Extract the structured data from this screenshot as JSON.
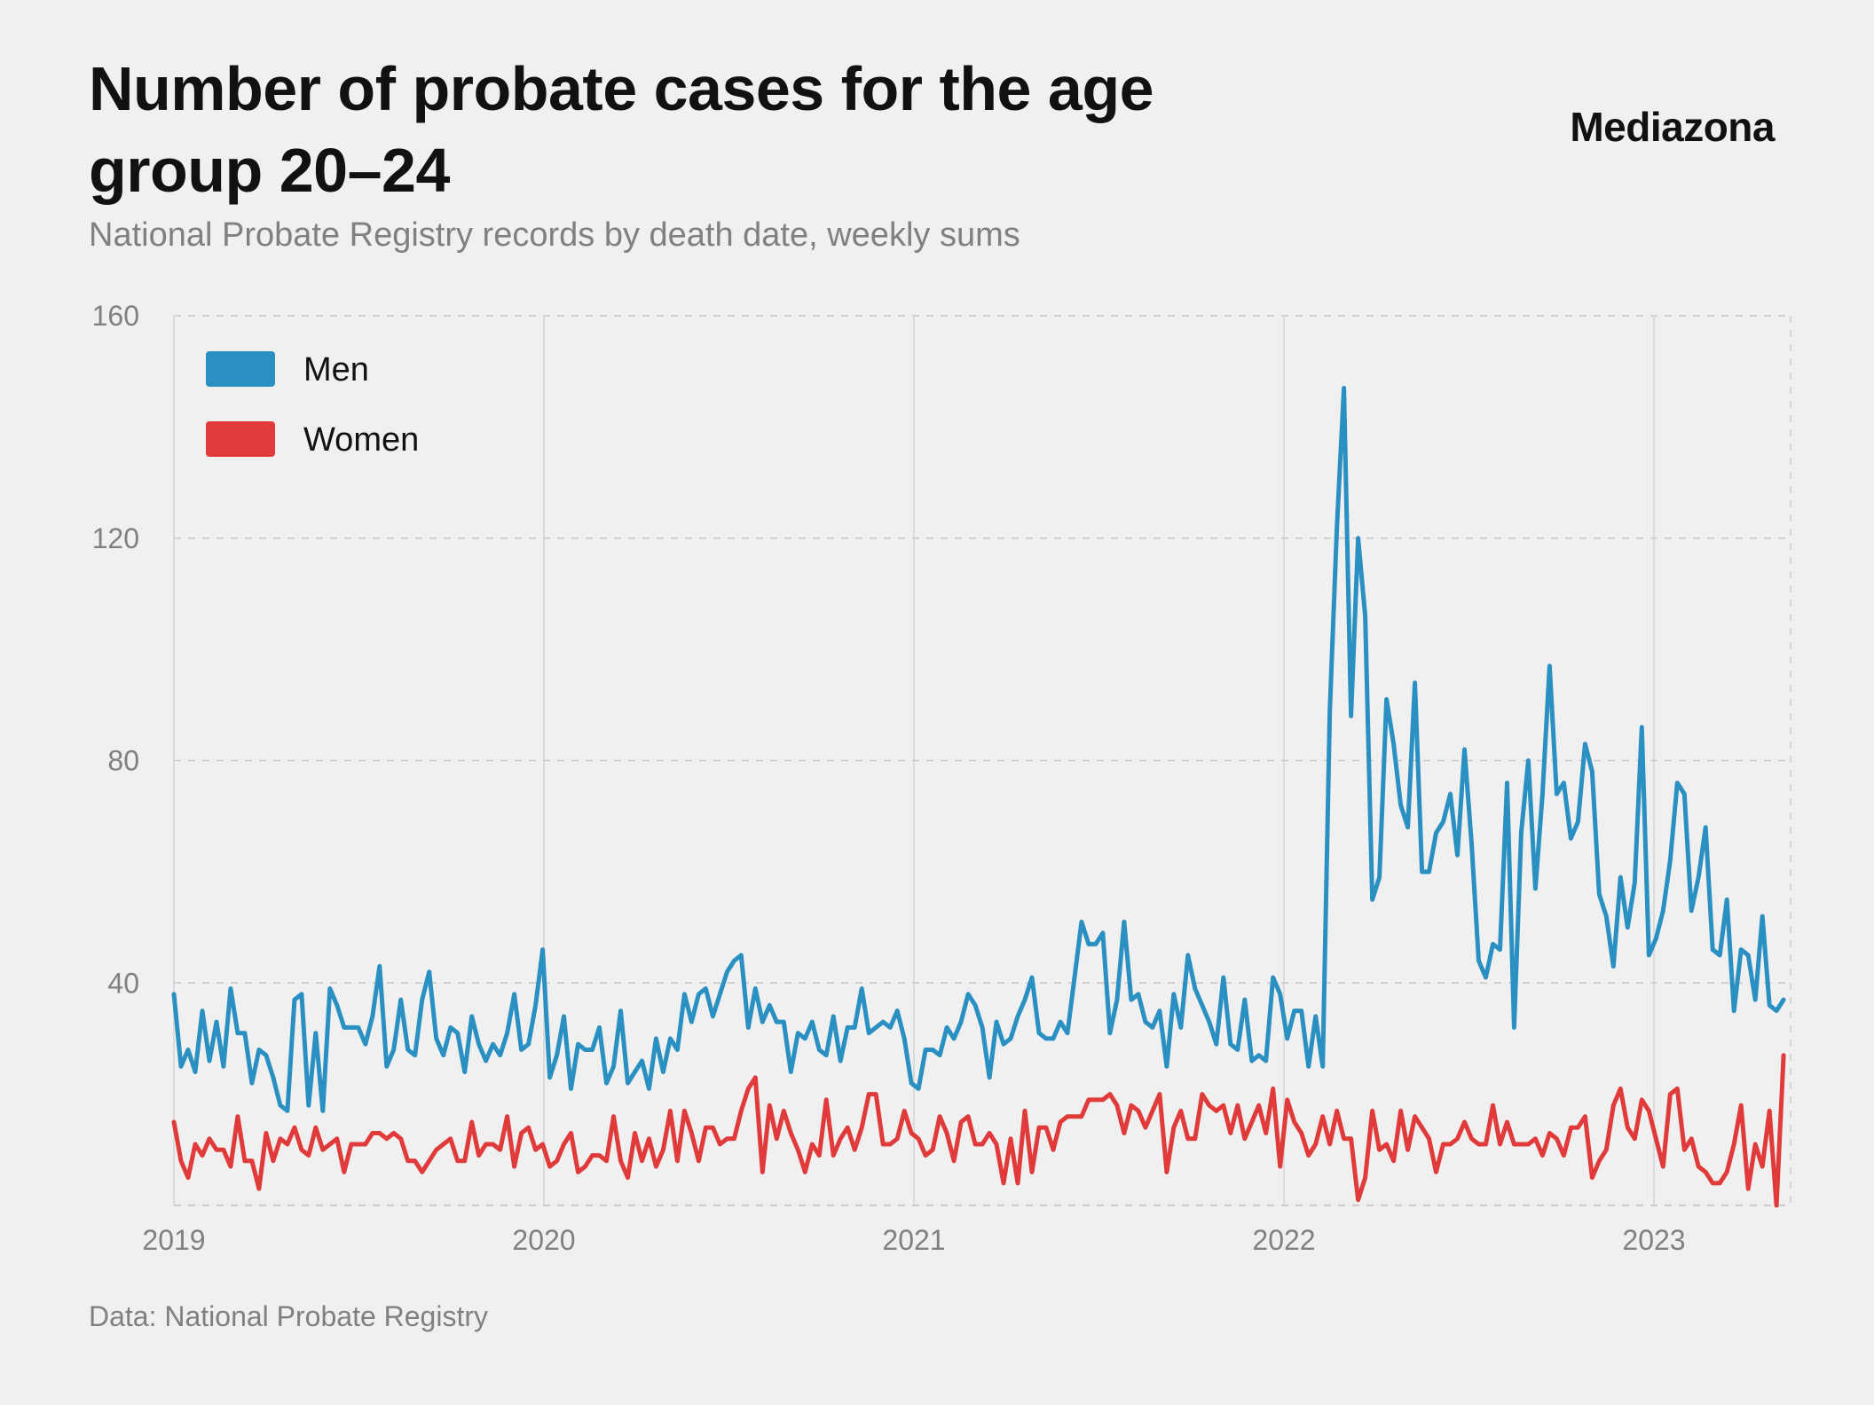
{
  "header": {
    "title": "Number of probate cases for the age group 20–24",
    "subtitle": "National Probate Registry records by death date, weekly sums",
    "brand": "Mediazona"
  },
  "footer": {
    "source": "Data: National Probate Registry"
  },
  "chart_data": {
    "type": "line",
    "title": "Number of probate cases for the age group 20–24",
    "subtitle": "National Probate Registry records by death date, weekly sums",
    "xlabel": "",
    "ylabel": "",
    "x_range": [
      2019.0,
      2023.4
    ],
    "ylim": [
      0,
      160
    ],
    "y_ticks": [
      40,
      80,
      120,
      160
    ],
    "x_ticks": [
      2019,
      2020,
      2021,
      2022,
      2023
    ],
    "x_tick_labels": [
      "2019",
      "2020",
      "2021",
      "2022",
      "2023"
    ],
    "grid": "horizontal dashed, vertical at year marks",
    "legend_position": "top-left",
    "series": [
      {
        "name": "Men",
        "color": "#2a8fc1",
        "x_start": 2019.0,
        "x_step_weeks": 1,
        "values": [
          38,
          25,
          28,
          24,
          35,
          26,
          33,
          25,
          39,
          31,
          31,
          22,
          28,
          27,
          23,
          18,
          17,
          37,
          38,
          18,
          31,
          17,
          39,
          36,
          32,
          32,
          32,
          29,
          34,
          43,
          25,
          28,
          37,
          28,
          27,
          37,
          42,
          30,
          27,
          32,
          31,
          24,
          34,
          29,
          26,
          29,
          27,
          31,
          38,
          28,
          29,
          36,
          46,
          23,
          27,
          34,
          21,
          29,
          28,
          28,
          32,
          22,
          25,
          35,
          22,
          24,
          26,
          21,
          30,
          24,
          30,
          28,
          38,
          33,
          38,
          39,
          34,
          38,
          42,
          44,
          45,
          32,
          39,
          33,
          36,
          33,
          33,
          24,
          31,
          30,
          33,
          28,
          27,
          34,
          26,
          32,
          32,
          39,
          31,
          32,
          33,
          32,
          35,
          30,
          22,
          21,
          28,
          28,
          27,
          32,
          30,
          33,
          38,
          36,
          32,
          23,
          33,
          29,
          30,
          34,
          37,
          41,
          31,
          30,
          30,
          33,
          31,
          41,
          51,
          47,
          47,
          49,
          31,
          37,
          51,
          37,
          38,
          33,
          32,
          35,
          25,
          38,
          32,
          45,
          39,
          36,
          33,
          29,
          41,
          29,
          28,
          37,
          26,
          27,
          26,
          41,
          38,
          30,
          35,
          35,
          25,
          34,
          25,
          89,
          122,
          147,
          88,
          120,
          106,
          55,
          59,
          91,
          83,
          72,
          68,
          94,
          60,
          60,
          67,
          69,
          74,
          63,
          82,
          65,
          44,
          41,
          47,
          46,
          76,
          32,
          67,
          80,
          57,
          74,
          97,
          74,
          76,
          66,
          69,
          83,
          78,
          56,
          52,
          43,
          59,
          50,
          58,
          86,
          45,
          48,
          53,
          62,
          76,
          74,
          53,
          59,
          68,
          46,
          45,
          55,
          35,
          46,
          45,
          37,
          52,
          36,
          35,
          37
        ]
      },
      {
        "name": "Women",
        "color": "#e03a3a",
        "x_start": 2019.0,
        "x_step_weeks": 1,
        "values": [
          15,
          8,
          5,
          11,
          9,
          12,
          10,
          10,
          7,
          16,
          8,
          8,
          3,
          13,
          8,
          12,
          11,
          14,
          10,
          9,
          14,
          10,
          11,
          12,
          6,
          11,
          11,
          11,
          13,
          13,
          12,
          13,
          12,
          8,
          8,
          6,
          8,
          10,
          11,
          12,
          8,
          8,
          15,
          9,
          11,
          11,
          10,
          16,
          7,
          13,
          14,
          10,
          11,
          7,
          8,
          11,
          13,
          6,
          7,
          9,
          9,
          8,
          16,
          8,
          5,
          13,
          8,
          12,
          7,
          10,
          17,
          8,
          17,
          13,
          8,
          14,
          14,
          11,
          12,
          12,
          17,
          21,
          23,
          6,
          18,
          12,
          17,
          13,
          10,
          6,
          11,
          9,
          19,
          9,
          12,
          14,
          10,
          14,
          20,
          20,
          11,
          11,
          12,
          17,
          13,
          12,
          9,
          10,
          16,
          13,
          8,
          15,
          16,
          11,
          11,
          13,
          11,
          4,
          12,
          4,
          17,
          6,
          14,
          14,
          10,
          15,
          16,
          16,
          16,
          19,
          19,
          19,
          20,
          18,
          13,
          18,
          17,
          14,
          17,
          20,
          6,
          14,
          17,
          12,
          12,
          20,
          18,
          17,
          18,
          13,
          18,
          12,
          15,
          18,
          13,
          21,
          7,
          19,
          15,
          13,
          9,
          11,
          16,
          11,
          17,
          12,
          12,
          1,
          5,
          17,
          10,
          11,
          8,
          17,
          10,
          16,
          14,
          12,
          6,
          11,
          11,
          12,
          15,
          12,
          11,
          11,
          18,
          11,
          15,
          11,
          11,
          11,
          12,
          9,
          13,
          12,
          9,
          14,
          14,
          16,
          5,
          8,
          10,
          18,
          21,
          14,
          12,
          19,
          17,
          12,
          7,
          20,
          21,
          10,
          12,
          7,
          6,
          4,
          4,
          6,
          11,
          18,
          3,
          11,
          7,
          17,
          0,
          27
        ]
      }
    ]
  }
}
